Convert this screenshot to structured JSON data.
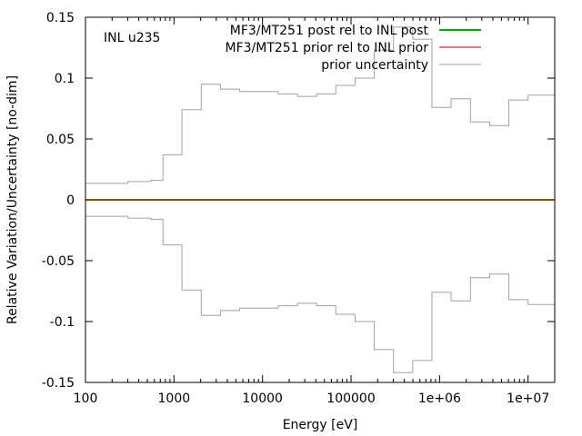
{
  "chart_data": {
    "type": "line",
    "xscale": "log",
    "xlim": [
      100,
      20000000
    ],
    "ylim": [
      -0.15,
      0.15
    ],
    "xlabel": "Energy [eV]",
    "ylabel": "Relative Variation/Uncertainty [no-dim]",
    "annotation": "INL u235",
    "grid": false,
    "legend_position": "top-right",
    "x_ticks": [
      {
        "value": 100,
        "label": "100"
      },
      {
        "value": 1000,
        "label": "1000"
      },
      {
        "value": 10000,
        "label": "10000"
      },
      {
        "value": 100000,
        "label": "100000"
      },
      {
        "value": 1000000,
        "label": "1e+06"
      },
      {
        "value": 10000000,
        "label": "1e+07"
      }
    ],
    "y_ticks": [
      {
        "value": 0.15,
        "label": "0.15"
      },
      {
        "value": 0.1,
        "label": "0.1"
      },
      {
        "value": 0.05,
        "label": "0.05"
      },
      {
        "value": 0,
        "label": "0"
      },
      {
        "value": -0.05,
        "label": "-0.05"
      },
      {
        "value": -0.1,
        "label": "-0.1"
      },
      {
        "value": -0.15,
        "label": "-0.15"
      }
    ],
    "series": [
      {
        "name": "MF3/MT251 post rel to INL post",
        "color": "#00aa00",
        "style": "step",
        "x": [
          100,
          20000000
        ],
        "y": [
          0,
          0
        ]
      },
      {
        "name": "MF3/MT251 prior rel to INL prior",
        "color": "#aa0000",
        "style": "step",
        "x": [
          100,
          20000000
        ],
        "y": [
          0,
          0
        ]
      },
      {
        "name": "prior uncertainty",
        "color": "#a0a0a0",
        "style": "step",
        "mirrored": true,
        "edges": [
          100,
          300,
          550,
          750,
          1230,
          2030,
          3350,
          5530,
          9120,
          15000,
          24800,
          40900,
          67400,
          111000,
          183000,
          302000,
          498000,
          821000,
          1350000,
          2230000,
          3680000,
          6070000,
          10000000,
          20000000
        ],
        "values": [
          0.0135,
          0.015,
          0.016,
          0.037,
          0.074,
          0.095,
          0.091,
          0.089,
          0.089,
          0.087,
          0.085,
          0.087,
          0.094,
          0.1,
          0.123,
          0.142,
          0.132,
          0.076,
          0.083,
          0.064,
          0.061,
          0.082,
          0.086
        ]
      }
    ]
  }
}
